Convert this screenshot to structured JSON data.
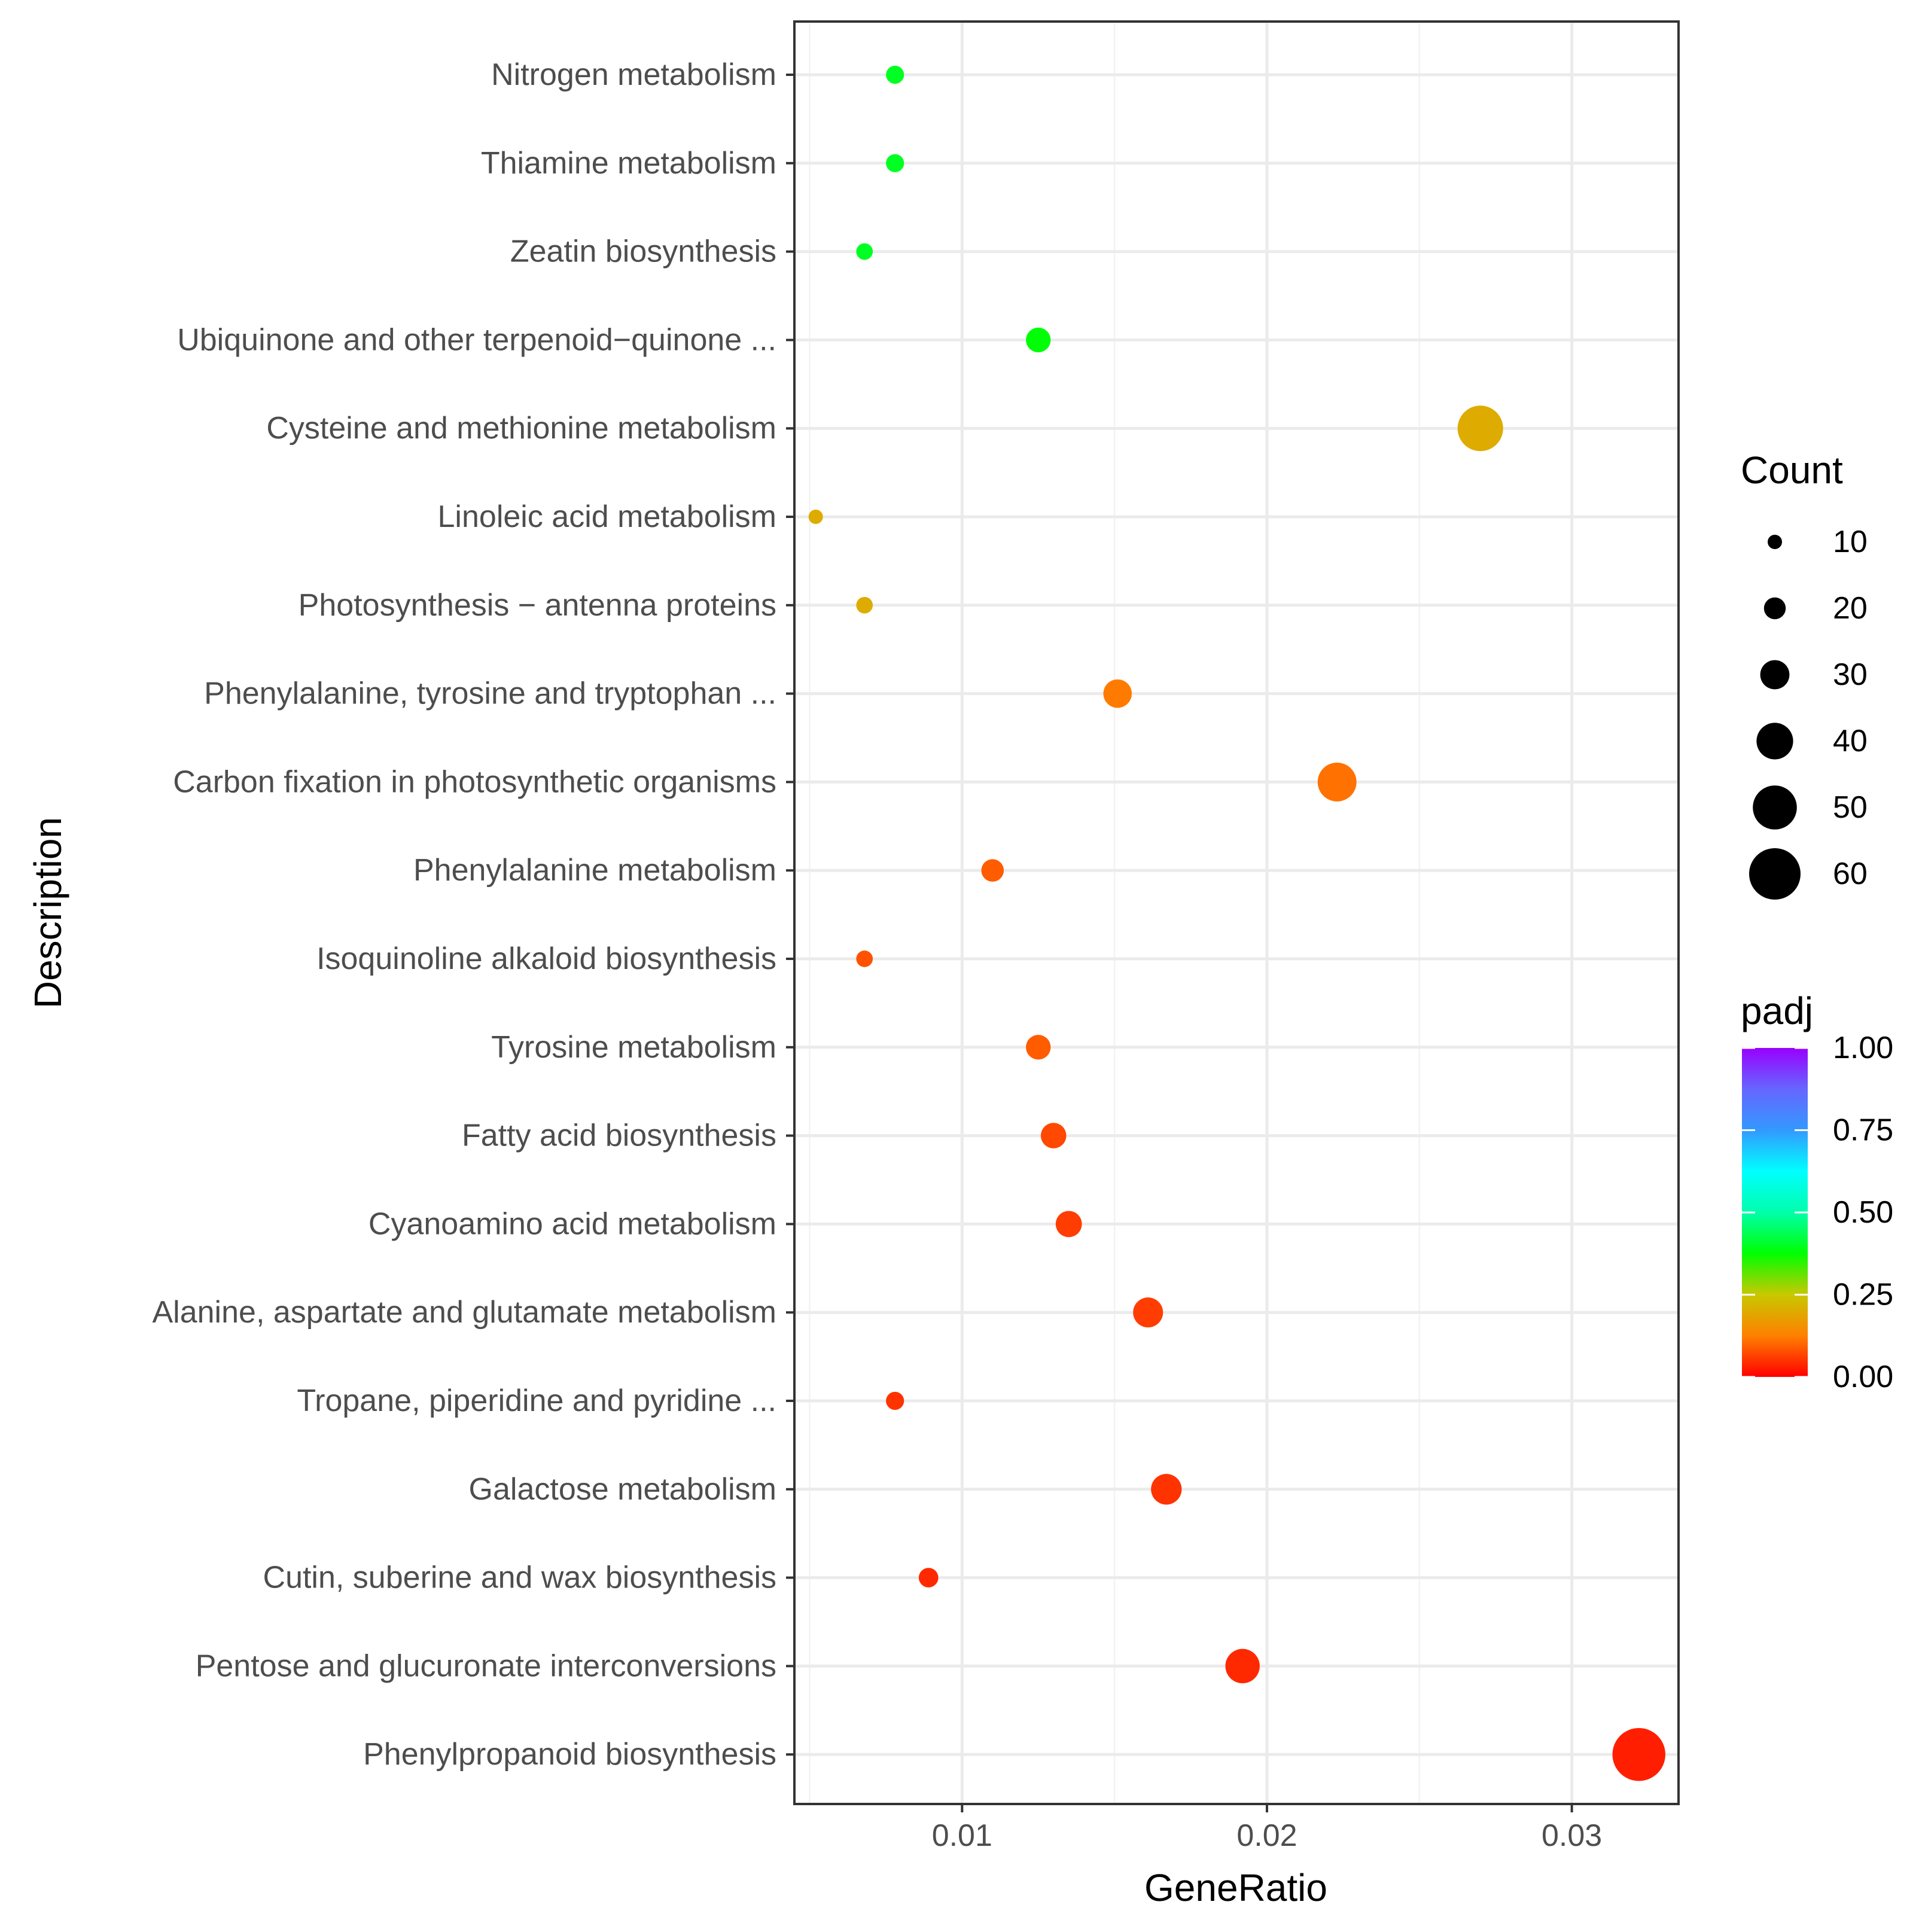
{
  "chart_data": {
    "type": "scatter",
    "title": "",
    "xlabel": "GeneRatio",
    "ylabel": "Description",
    "xlim": [
      0.0045,
      0.0335
    ],
    "x_ticks": [
      0.01,
      0.02,
      0.03
    ],
    "x_tick_labels": [
      "0.01",
      "0.02",
      "0.03"
    ],
    "grid": true,
    "points": [
      {
        "label": "Nitrogen metabolism",
        "generatio": 0.0078,
        "count": 15,
        "padj": 0.4
      },
      {
        "label": "Thiamine metabolism",
        "generatio": 0.0078,
        "count": 15,
        "padj": 0.4
      },
      {
        "label": "Zeatin biosynthesis",
        "generatio": 0.0068,
        "count": 13,
        "padj": 0.4
      },
      {
        "label": "Ubiquinone and other terpenoid−quinone ...",
        "generatio": 0.0125,
        "count": 24,
        "padj": 0.38
      },
      {
        "label": "Cysteine and methionine metabolism",
        "generatio": 0.027,
        "count": 52,
        "padj": 0.2
      },
      {
        "label": "Linoleic acid metabolism",
        "generatio": 0.0052,
        "count": 10,
        "padj": 0.2
      },
      {
        "label": "Photosynthesis − antenna proteins",
        "generatio": 0.0068,
        "count": 13,
        "padj": 0.2
      },
      {
        "label": "Phenylalanine, tyrosine and tryptophan ...",
        "generatio": 0.0151,
        "count": 29,
        "padj": 0.12
      },
      {
        "label": "Carbon fixation in photosynthetic organisms",
        "generatio": 0.0223,
        "count": 43,
        "padj": 0.11
      },
      {
        "label": "Phenylalanine metabolism",
        "generatio": 0.011,
        "count": 21,
        "padj": 0.09
      },
      {
        "label": "Isoquinoline alkaloid biosynthesis",
        "generatio": 0.0068,
        "count": 13,
        "padj": 0.08
      },
      {
        "label": "Tyrosine metabolism",
        "generatio": 0.0125,
        "count": 24,
        "padj": 0.09
      },
      {
        "label": "Fatty acid biosynthesis",
        "generatio": 0.013,
        "count": 25,
        "padj": 0.07
      },
      {
        "label": "Cyanoamino acid metabolism",
        "generatio": 0.0135,
        "count": 26,
        "padj": 0.06
      },
      {
        "label": "Alanine, aspartate and glutamate metabolism",
        "generatio": 0.0161,
        "count": 31,
        "padj": 0.06
      },
      {
        "label": "Tropane, piperidine and pyridine ...",
        "generatio": 0.0078,
        "count": 15,
        "padj": 0.05
      },
      {
        "label": "Galactose metabolism",
        "generatio": 0.0167,
        "count": 32,
        "padj": 0.05
      },
      {
        "label": "Cutin, suberine and wax biosynthesis",
        "generatio": 0.0089,
        "count": 17,
        "padj": 0.04
      },
      {
        "label": "Pentose and glucuronate interconversions",
        "generatio": 0.0192,
        "count": 37,
        "padj": 0.04
      },
      {
        "label": "Phenylpropanoid biosynthesis",
        "generatio": 0.0322,
        "count": 62,
        "padj": 0.03
      }
    ],
    "size_legend": {
      "title": "Count",
      "values": [
        10,
        20,
        30,
        40,
        50,
        60
      ],
      "labels": [
        "10",
        "20",
        "30",
        "40",
        "50",
        "60"
      ],
      "color": "#000000"
    },
    "color_legend": {
      "title": "padj",
      "range": [
        0,
        1
      ],
      "values": [
        0.0,
        0.25,
        0.5,
        0.75,
        1.0
      ],
      "labels": [
        "0.00",
        "0.25",
        "0.50",
        "0.75",
        "1.00"
      ],
      "stops": [
        {
          "value": 0.0,
          "color": "#ff0000"
        },
        {
          "value": 0.125,
          "color": "#ff8000"
        },
        {
          "value": 0.25,
          "color": "#c8c800"
        },
        {
          "value": 0.375,
          "color": "#00ff00"
        },
        {
          "value": 0.5,
          "color": "#00ffaa"
        },
        {
          "value": 0.625,
          "color": "#00ffff"
        },
        {
          "value": 0.75,
          "color": "#3399ff"
        },
        {
          "value": 0.875,
          "color": "#6666ff"
        },
        {
          "value": 1.0,
          "color": "#9900ff"
        }
      ]
    }
  }
}
